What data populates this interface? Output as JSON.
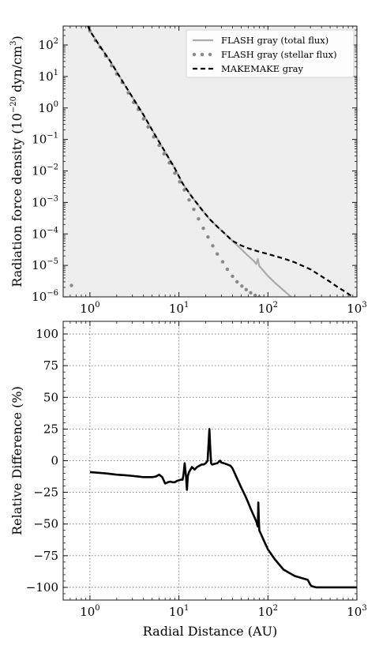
{
  "chart_data": [
    {
      "type": "line",
      "xlabel": "",
      "ylabel": "Radiation force density (10−20 dyn/cm3)",
      "ylabel_parts": [
        "Radiation force density (10",
        "−20",
        " dyn/cm",
        "3",
        ")"
      ],
      "xscale": "log",
      "yscale": "log",
      "xlim": [
        0.5,
        1000
      ],
      "ylim": [
        1e-06,
        400
      ],
      "x_ticks": [
        1,
        10,
        100,
        1000
      ],
      "x_tick_labels": [
        {
          "base": "10",
          "exp": "0"
        },
        {
          "base": "10",
          "exp": "1"
        },
        {
          "base": "10",
          "exp": "2"
        },
        {
          "base": "10",
          "exp": "3"
        }
      ],
      "y_ticks": [
        1e-06,
        1e-05,
        0.0001,
        0.001,
        0.01,
        0.1,
        1,
        10,
        100
      ],
      "y_tick_labels": [
        {
          "base": "10",
          "exp": "−6"
        },
        {
          "base": "10",
          "exp": "−5"
        },
        {
          "base": "10",
          "exp": "−4"
        },
        {
          "base": "10",
          "exp": "−3"
        },
        {
          "base": "10",
          "exp": "−2"
        },
        {
          "base": "10",
          "exp": "−1"
        },
        {
          "base": "10",
          "exp": "0"
        },
        {
          "base": "10",
          "exp": "1"
        },
        {
          "base": "10",
          "exp": "2"
        }
      ],
      "grid": false,
      "legend_position": "top-right",
      "background": "#eeeeee",
      "series": [
        {
          "name": "FLASH gray (total flux)",
          "style": "solid",
          "color": "#aaaaaa",
          "x": [
            0.95,
            1.0,
            1.3,
            1.7,
            2.2,
            3.0,
            4.0,
            5.3,
            7.0,
            9.0,
            11,
            14,
            18,
            22,
            27,
            33,
            40,
            50,
            60,
            70,
            74,
            77,
            80,
            90,
            100,
            120,
            150,
            182
          ],
          "y": [
            400,
            280,
            90,
            30,
            9,
            2.2,
            0.6,
            0.15,
            0.04,
            0.012,
            0.004,
            0.0015,
            0.0006,
            0.0003,
            0.00017,
            0.0001,
            6e-05,
            3.3e-05,
            2e-05,
            1.35e-05,
            1.1e-05,
            1.6e-05,
            9.5e-06,
            6.5e-06,
            4.6e-06,
            2.8e-06,
            1.6e-06,
            1e-06
          ]
        },
        {
          "name": "FLASH gray (stellar flux)",
          "style": "dotted",
          "color": "#888888",
          "x": [
            0.62,
            1.0,
            1.15,
            1.3,
            1.5,
            1.75,
            2.0,
            2.3,
            2.7,
            3.1,
            3.5,
            4.0,
            4.5,
            5.2,
            6.0,
            6.8,
            7.8,
            9.0,
            10.2,
            11.5,
            13,
            14.7,
            16.6,
            18.8,
            21.2,
            24,
            27,
            31,
            35,
            40,
            45,
            51,
            57,
            64,
            72,
            80
          ],
          "y": [
            2.3e-06,
            280,
            140,
            85,
            45,
            22,
            12,
            6.5,
            3.0,
            1.5,
            0.9,
            0.45,
            0.25,
            0.12,
            0.065,
            0.035,
            0.018,
            0.0085,
            0.0045,
            0.0025,
            0.0012,
            0.0006,
            0.0003,
            0.00015,
            8e-05,
            4.2e-05,
            2.3e-05,
            1.3e-05,
            7.5e-06,
            4.5e-06,
            3e-06,
            2.2e-06,
            1.7e-06,
            1.35e-06,
            1.12e-06,
            1e-06
          ]
        },
        {
          "name": "MAKEMAKE gray",
          "style": "dashed",
          "color": "#000000",
          "x": [
            0.95,
            1.0,
            1.3,
            1.7,
            2.2,
            3.0,
            4.0,
            5.3,
            7.0,
            9.0,
            11,
            14,
            18,
            22,
            27,
            33,
            40,
            50,
            60,
            80,
            100,
            150,
            200,
            300,
            400,
            500,
            600,
            700,
            800,
            900
          ],
          "y": [
            400,
            280,
            90,
            30,
            9,
            2.2,
            0.6,
            0.15,
            0.04,
            0.012,
            0.004,
            0.0015,
            0.0006,
            0.0003,
            0.00017,
            0.0001,
            6e-05,
            4.3e-05,
            3.5e-05,
            2.7e-05,
            2.3e-05,
            1.65e-05,
            1.25e-05,
            7.5e-06,
            4.5e-06,
            3e-06,
            2.1e-06,
            1.6e-06,
            1.25e-06,
            1e-06
          ]
        }
      ]
    },
    {
      "type": "line",
      "xlabel": "Radial Distance (AU)",
      "ylabel": "Relative Difference (%)",
      "xscale": "log",
      "xlim": [
        0.5,
        1000
      ],
      "ylim": [
        -110,
        110
      ],
      "x_ticks": [
        1,
        10,
        100,
        1000
      ],
      "x_tick_labels": [
        {
          "base": "10",
          "exp": "0"
        },
        {
          "base": "10",
          "exp": "1"
        },
        {
          "base": "10",
          "exp": "2"
        },
        {
          "base": "10",
          "exp": "3"
        }
      ],
      "y_ticks": [
        -100,
        -75,
        -50,
        -25,
        0,
        25,
        50,
        75,
        100
      ],
      "y_tick_labels": [
        "−100",
        "−75",
        "−50",
        "−25",
        "0",
        "25",
        "50",
        "75",
        "100"
      ],
      "grid": true,
      "background": "#ffffff",
      "series": [
        {
          "name": "",
          "style": "solid",
          "color": "#000000",
          "x": [
            1.0,
            1.5,
            2.0,
            2.5,
            3.0,
            3.5,
            4.0,
            4.5,
            5.0,
            5.5,
            6.0,
            6.5,
            7.0,
            7.5,
            8.0,
            8.5,
            9.0,
            9.5,
            10.0,
            10.5,
            11.0,
            11.3,
            11.6,
            12.0,
            12.3,
            12.6,
            13.0,
            13.5,
            14.0,
            15.0,
            16.0,
            17.0,
            18.0,
            19.0,
            20.0,
            21.0,
            22.0,
            22.5,
            23.0,
            23.5,
            24.0,
            25.0,
            27.0,
            29.0,
            30.0,
            32.0,
            35.0,
            38.0,
            40.0,
            45.0,
            50.0,
            55.0,
            60.0,
            65.0,
            70.0,
            75.0,
            76.0,
            77.0,
            78.0,
            79.0,
            80.0,
            90.0,
            100.0,
            120.0,
            150.0,
            200.0,
            250.0,
            280.0,
            290.0,
            300.0,
            310.0,
            350.0,
            400.0,
            500.0,
            600.0,
            800.0,
            1000.0
          ],
          "y": [
            -9,
            -10,
            -11,
            -11.5,
            -12,
            -12.5,
            -13,
            -13,
            -13,
            -12.5,
            -11,
            -13,
            -18,
            -17,
            -16.5,
            -17,
            -17,
            -16,
            -15.5,
            -15,
            -15,
            -10,
            -2,
            -12,
            -23,
            -12,
            -9,
            -7,
            -5,
            -7,
            -5,
            -4,
            -3,
            -3,
            -2,
            0,
            25,
            10,
            -2,
            -3,
            -3,
            -2.5,
            -2,
            0,
            -1.5,
            -2,
            -3,
            -4,
            -6,
            -14,
            -21,
            -27,
            -33,
            -39,
            -44,
            -49,
            -51,
            -52,
            -33,
            -46,
            -55,
            -63,
            -70,
            -78,
            -86,
            -91,
            -93,
            -94,
            -96,
            -98,
            -99,
            -100,
            -100,
            -100,
            -100,
            -100,
            -100
          ]
        }
      ]
    }
  ],
  "legend": [
    {
      "label": "FLASH gray (total flux)",
      "style": "solid",
      "color": "#aaaaaa"
    },
    {
      "label": "FLASH gray (stellar flux)",
      "style": "dotted",
      "color": "#888888"
    },
    {
      "label": "MAKEMAKE gray",
      "style": "dashed",
      "color": "#000000"
    }
  ]
}
